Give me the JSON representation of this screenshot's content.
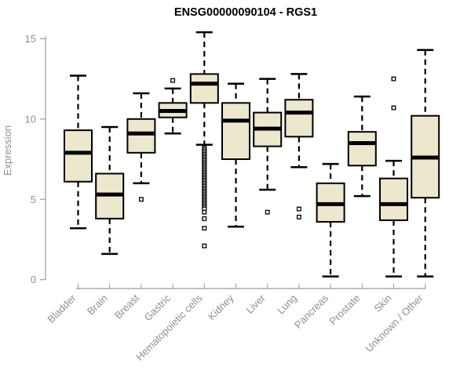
{
  "chart_data": {
    "type": "boxplot",
    "title": "ENSG00000090104 - RGS1",
    "ylabel": "Expression",
    "xlabel": "",
    "ylim": [
      0,
      15.5
    ],
    "yticks": [
      0,
      5,
      10,
      15
    ],
    "grid": "off",
    "categories": [
      "Bladder",
      "Brain",
      "Breast",
      "Gastric",
      "Hematopoietic cells",
      "Kidney",
      "Liver",
      "Lung",
      "Pancreas",
      "Prostate",
      "Skin",
      "Unknown / Other"
    ],
    "series": [
      {
        "name": "Bladder",
        "low": 3.2,
        "q1": 6.1,
        "median": 7.9,
        "q3": 9.3,
        "high": 12.7,
        "outliers": []
      },
      {
        "name": "Brain",
        "low": 1.6,
        "q1": 3.8,
        "median": 5.3,
        "q3": 6.6,
        "high": 9.5,
        "outliers": []
      },
      {
        "name": "Breast",
        "low": 6.0,
        "q1": 7.9,
        "median": 9.1,
        "q3": 10.0,
        "high": 11.6,
        "outliers": [
          5.0
        ]
      },
      {
        "name": "Gastric",
        "low": 9.1,
        "q1": 10.1,
        "median": 10.5,
        "q3": 11.0,
        "high": 11.9,
        "outliers": [
          12.4
        ]
      },
      {
        "name": "Hematopoietic cells",
        "low": 8.4,
        "q1": 11.0,
        "median": 12.2,
        "q3": 12.8,
        "high": 15.4,
        "outliers": [
          8.2,
          8.1,
          8.0,
          7.9,
          7.8,
          7.7,
          7.6,
          7.5,
          7.4,
          7.3,
          7.2,
          7.1,
          7.0,
          6.9,
          6.8,
          6.7,
          6.6,
          6.5,
          6.4,
          6.3,
          6.2,
          6.1,
          6.0,
          5.9,
          5.8,
          5.7,
          5.6,
          5.5,
          5.4,
          5.3,
          5.2,
          5.1,
          5.0,
          4.9,
          4.8,
          4.7,
          4.6,
          4.5,
          4.4,
          4.2,
          3.8,
          3.2,
          2.1
        ]
      },
      {
        "name": "Kidney",
        "low": 3.3,
        "q1": 7.5,
        "median": 9.9,
        "q3": 11.0,
        "high": 12.2,
        "outliers": []
      },
      {
        "name": "Liver",
        "low": 5.6,
        "q1": 8.3,
        "median": 9.4,
        "q3": 10.4,
        "high": 12.5,
        "outliers": [
          4.2
        ]
      },
      {
        "name": "Lung",
        "low": 7.0,
        "q1": 8.9,
        "median": 10.4,
        "q3": 11.2,
        "high": 12.8,
        "outliers": [
          4.4,
          3.9
        ]
      },
      {
        "name": "Pancreas",
        "low": 0.2,
        "q1": 3.6,
        "median": 4.7,
        "q3": 6.0,
        "high": 7.2,
        "outliers": []
      },
      {
        "name": "Prostate",
        "low": 5.2,
        "q1": 7.1,
        "median": 8.5,
        "q3": 9.2,
        "high": 11.4,
        "outliers": []
      },
      {
        "name": "Skin",
        "low": 0.2,
        "q1": 3.7,
        "median": 4.7,
        "q3": 6.3,
        "high": 7.4,
        "outliers": [
          12.5,
          10.7
        ]
      },
      {
        "name": "Unknown / Other",
        "low": 0.2,
        "q1": 5.1,
        "median": 7.6,
        "q3": 10.2,
        "high": 14.3,
        "outliers": []
      }
    ],
    "colors": {
      "box_fill": "#ECE7CD",
      "box_stroke": "#000000",
      "median": "#000000",
      "axis": "#9b9b9b",
      "label": "#8f8f8f",
      "title": "#000000",
      "background": "#ffffff"
    }
  }
}
